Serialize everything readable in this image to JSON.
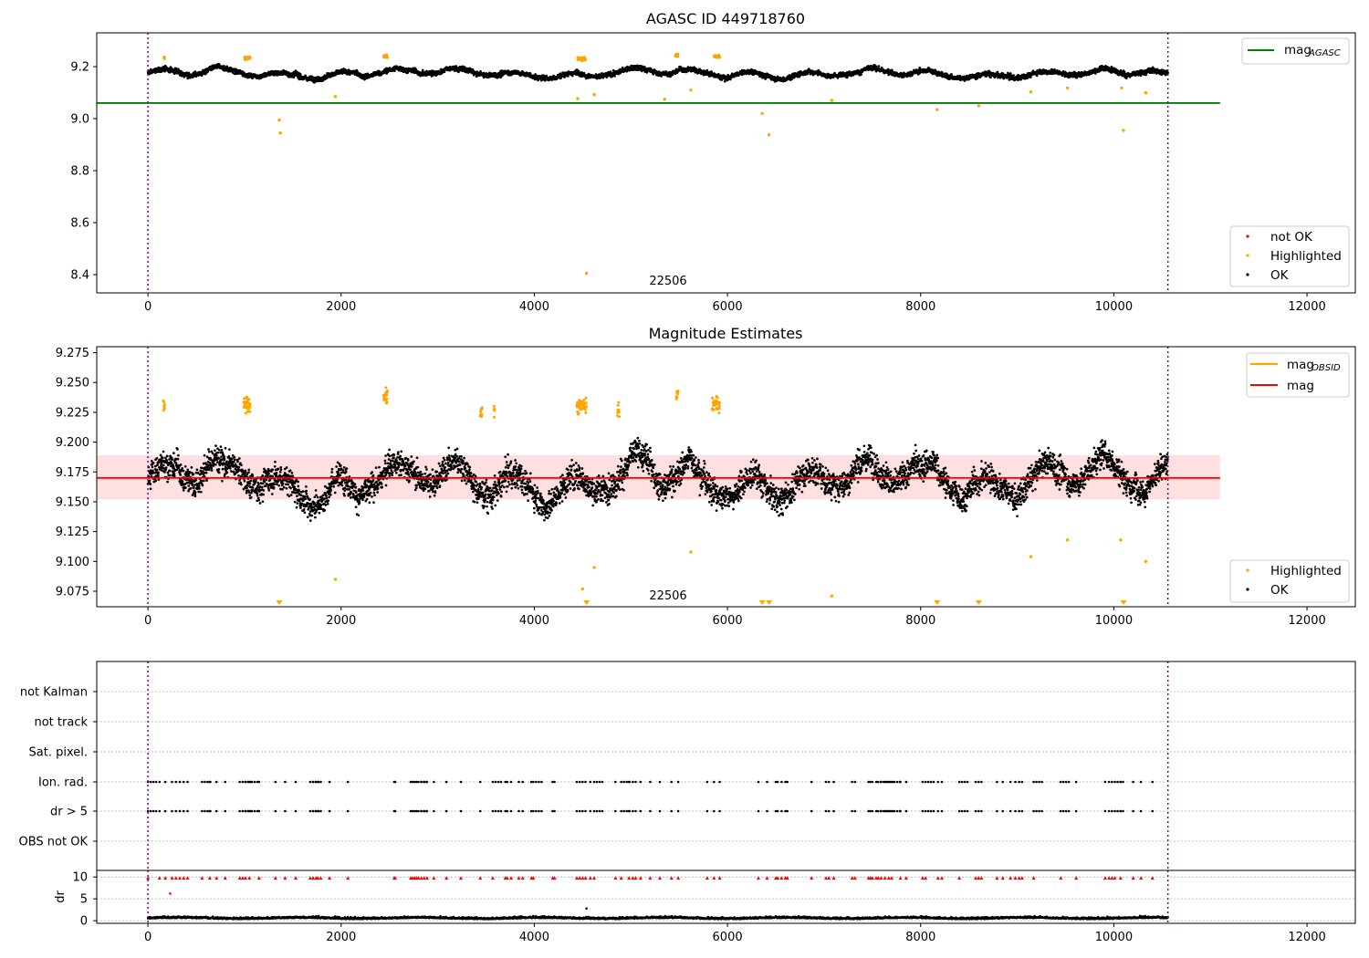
{
  "chart_data": [
    {
      "type": "scatter",
      "title": "AGASC ID 449718760",
      "annotation": "22506",
      "xlim": [
        -530,
        12500
      ],
      "ylim": [
        8.33,
        9.33
      ],
      "xticks": [
        0,
        2000,
        4000,
        6000,
        8000,
        10000,
        12000
      ],
      "yticks": [
        8.4,
        8.6,
        8.8,
        9.0,
        9.2
      ],
      "vlines": [
        0,
        10560
      ],
      "hline": {
        "y": 9.06,
        "x_end": 11100,
        "color": "#008000",
        "name": "mag",
        "name_sub": "AGASC"
      },
      "series": [
        {
          "name": "not OK",
          "color": "#ff0000"
        },
        {
          "name": "Highlighted",
          "color": "#ffa500"
        },
        {
          "name": "OK",
          "color": "#000000"
        }
      ],
      "ok_baseline": 9.175,
      "ok_x_range": [
        0,
        10560
      ],
      "highlight_clusters": [
        [
          1000,
          1060,
          9.232
        ],
        [
          2440,
          2480,
          9.24
        ],
        [
          4450,
          4530,
          9.23
        ],
        [
          5460,
          5490,
          9.245
        ],
        [
          5860,
          5920,
          9.238
        ],
        [
          165,
          175,
          9.232
        ]
      ],
      "highlight_points": [
        [
          1360,
          8.995
        ],
        [
          1370,
          8.945
        ],
        [
          1940,
          9.085
        ],
        [
          4450,
          9.077
        ],
        [
          4540,
          8.405
        ],
        [
          4620,
          9.093
        ],
        [
          5350,
          9.075
        ],
        [
          5620,
          9.11
        ],
        [
          6360,
          9.02
        ],
        [
          6430,
          8.938
        ],
        [
          7080,
          9.07
        ],
        [
          8170,
          9.035
        ],
        [
          8600,
          9.05
        ],
        [
          9140,
          9.103
        ],
        [
          9520,
          9.118
        ],
        [
          10080,
          9.118
        ],
        [
          10100,
          8.955
        ],
        [
          10330,
          9.1
        ]
      ]
    },
    {
      "type": "scatter",
      "title": "Magnitude Estimates",
      "annotation": "22506",
      "xlim": [
        -530,
        12500
      ],
      "ylim": [
        9.062,
        9.28
      ],
      "xticks": [
        0,
        2000,
        4000,
        6000,
        8000,
        10000,
        12000
      ],
      "yticks": [
        9.075,
        9.1,
        9.125,
        9.15,
        9.175,
        9.2,
        9.225,
        9.25,
        9.275
      ],
      "vlines": [
        0,
        10560
      ],
      "mag_line": {
        "y": 9.17,
        "x_end": 11100,
        "color": "#ff0000",
        "name": "mag"
      },
      "obsid_line": {
        "color": "#ffa500",
        "name": "mag",
        "name_sub": "OBSID"
      },
      "band": {
        "y_low": 9.152,
        "y_high": 9.189
      },
      "series": [
        {
          "name": "Highlighted",
          "color": "#ffa500"
        },
        {
          "name": "OK",
          "color": "#000000"
        }
      ],
      "ok_baseline": 9.17,
      "ok_x_range": [
        0,
        10560
      ],
      "highlight_clusters": [
        [
          990,
          1060,
          9.232
        ],
        [
          2440,
          2480,
          9.238
        ],
        [
          4440,
          4540,
          9.23
        ],
        [
          5470,
          5490,
          9.24
        ],
        [
          5840,
          5920,
          9.232
        ],
        [
          160,
          175,
          9.232
        ],
        [
          3440,
          3460,
          9.225
        ],
        [
          3580,
          3590,
          9.226
        ],
        [
          4860,
          4880,
          9.228
        ]
      ],
      "highlight_points": [
        [
          1940,
          9.085
        ],
        [
          4500,
          9.077
        ],
        [
          4620,
          9.095
        ],
        [
          5620,
          9.108
        ],
        [
          7080,
          9.071
        ],
        [
          9140,
          9.104
        ],
        [
          9520,
          9.118
        ],
        [
          10070,
          9.118
        ],
        [
          10330,
          9.1
        ]
      ],
      "markers_bottom": [
        1360,
        4540,
        6360,
        6430,
        8170,
        8600,
        10100
      ]
    },
    {
      "type": "scatter",
      "categories": [
        "not Kalman",
        "not track",
        "Sat. pixel.",
        "Ion. rad.",
        "dr > 5",
        "OBS not OK"
      ],
      "xlim": [
        -530,
        12500
      ],
      "vlines": [
        0,
        10560
      ],
      "flag_x": [
        0,
        120,
        180,
        250,
        290,
        330,
        370,
        410,
        560,
        640,
        710,
        800,
        950,
        980,
        1010,
        1050,
        1150,
        1320,
        1420,
        1530,
        1680,
        1710,
        1740,
        1760,
        1790,
        1880,
        2070,
        2550,
        2560,
        2720,
        2740,
        2760,
        2780,
        2800,
        2830,
        2860,
        2890,
        2960,
        3090,
        3240,
        3440,
        3570,
        3700,
        3720,
        3760,
        3840,
        3880,
        3970,
        3990,
        4190,
        4210,
        4440,
        4470,
        4500,
        4530,
        4580,
        4620,
        4840,
        4900,
        4980,
        5020,
        5050,
        5100,
        5200,
        5300,
        5420,
        5490,
        5790,
        5860,
        5920,
        6320,
        6410,
        6500,
        6520,
        6560,
        6600,
        6620,
        6870,
        7020,
        7050,
        7100,
        7290,
        7320,
        7460,
        7480,
        7500,
        7540,
        7560,
        7590,
        7630,
        7670,
        7700,
        7790,
        7850,
        8020,
        8050,
        8180,
        8220,
        8400,
        8570,
        8600,
        8630,
        8790,
        8850,
        8930,
        8980,
        9020,
        9050,
        9170,
        9450,
        9610,
        9910,
        9950,
        9980,
        10010,
        10070,
        10200,
        10280,
        10400
      ]
    },
    {
      "type": "scatter",
      "ylabel": "dr",
      "xlim": [
        -530,
        12500
      ],
      "ylim": [
        -0.6,
        11.5
      ],
      "xticks": [
        0,
        2000,
        4000,
        6000,
        8000,
        10000,
        12000
      ],
      "yticks": [
        0,
        5,
        10
      ],
      "vlines": [
        0,
        10560
      ],
      "dr_baseline": 0.5,
      "dr_outliers": [
        [
          230,
          6.2
        ],
        [
          4540,
          2.8
        ]
      ],
      "red_triangle_y": 9.8
    }
  ]
}
